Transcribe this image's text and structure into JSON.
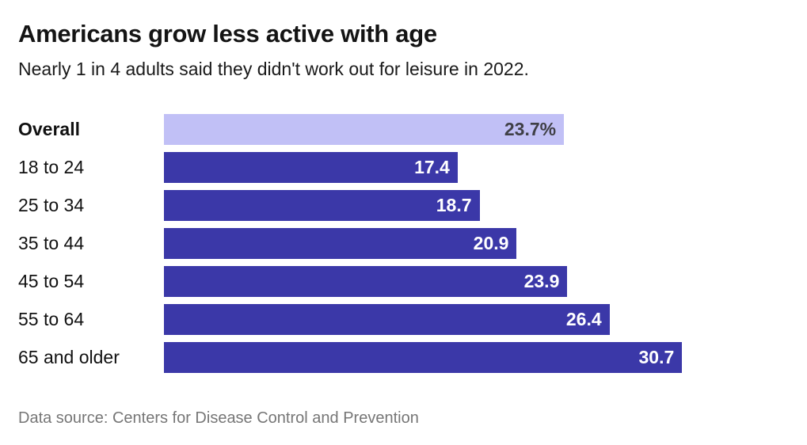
{
  "chart_data": {
    "type": "bar",
    "orientation": "horizontal",
    "title": "Americans grow less active with age",
    "subtitle": "Nearly 1 in 4 adults said they didn't work out for leisure in 2022.",
    "source": "Data source: Centers for Disease Control and Prevention",
    "categories": [
      "Overall",
      "18 to 24",
      "25 to 34",
      "35 to 44",
      "45 to 54",
      "55 to 64",
      "65 and older"
    ],
    "values": [
      23.7,
      17.4,
      18.7,
      20.9,
      23.9,
      26.4,
      30.7
    ],
    "value_labels": [
      "23.7%",
      "17.4",
      "18.7",
      "20.9",
      "23.9",
      "26.4",
      "30.7"
    ],
    "unit": "percent of adults",
    "highlight_index": 0,
    "xlim": [
      0,
      38.1
    ],
    "grid": false,
    "legend": "none",
    "colors": {
      "bar": "#3b38a8",
      "highlight_bar": "#c1c0f6",
      "value_text": "#ffffff",
      "highlight_value_text": "#3f3f46"
    }
  }
}
